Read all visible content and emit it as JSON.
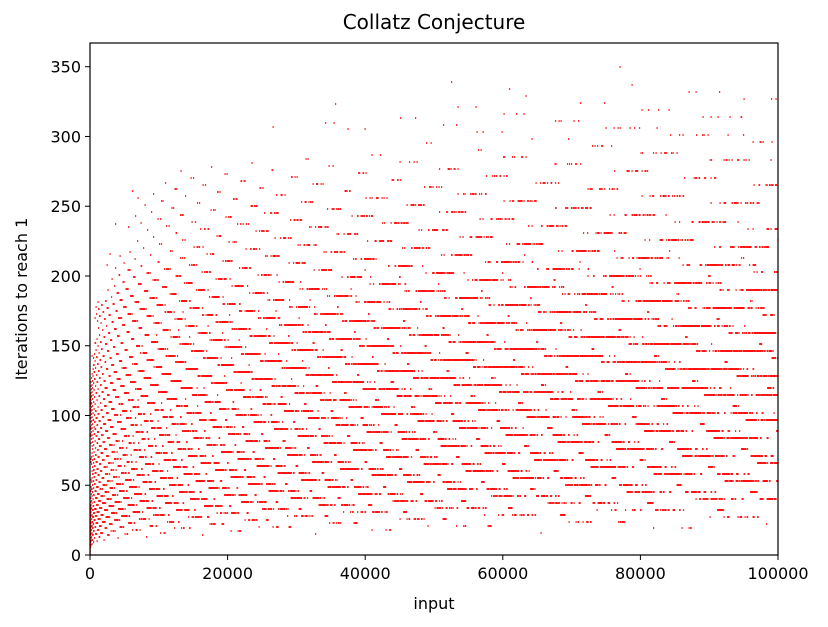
{
  "chart_data": {
    "type": "scatter",
    "title": "Collatz Conjecture",
    "xlabel": "input",
    "ylabel": "Iterations to reach 1",
    "xlim": [
      0,
      100000
    ],
    "ylim": [
      0,
      367
    ],
    "xticks": [
      0,
      20000,
      40000,
      60000,
      80000,
      100000
    ],
    "yticks": [
      0,
      50,
      100,
      150,
      200,
      250,
      300,
      350
    ],
    "grid": false,
    "legend": "none",
    "marker_color": "#ff0000",
    "series": [
      {
        "n_start": 1,
        "n_end": 100000,
        "note": "computed: number of Collatz steps (n -> n/2 if even, 3n+1 if odd) until reaching 1, for every input n",
        "sample_points": [
          {
            "x": 77031,
            "y": 350
          },
          {
            "x": 52527,
            "y": 339
          },
          {
            "x": 35655,
            "y": 323
          },
          {
            "x": 26623,
            "y": 307
          },
          {
            "x": 13255,
            "y": 275
          },
          {
            "x": 6171,
            "y": 261
          },
          {
            "x": 3711,
            "y": 237
          },
          {
            "x": 2463,
            "y": 208
          },
          {
            "x": 2919,
            "y": 215
          },
          {
            "x": 1161,
            "y": 181
          },
          {
            "x": 871,
            "y": 178
          },
          {
            "x": 703,
            "y": 170
          },
          {
            "x": 327,
            "y": 143
          },
          {
            "x": 231,
            "y": 127
          },
          {
            "x": 97,
            "y": 118
          },
          {
            "x": 27,
            "y": 111
          }
        ]
      }
    ]
  }
}
